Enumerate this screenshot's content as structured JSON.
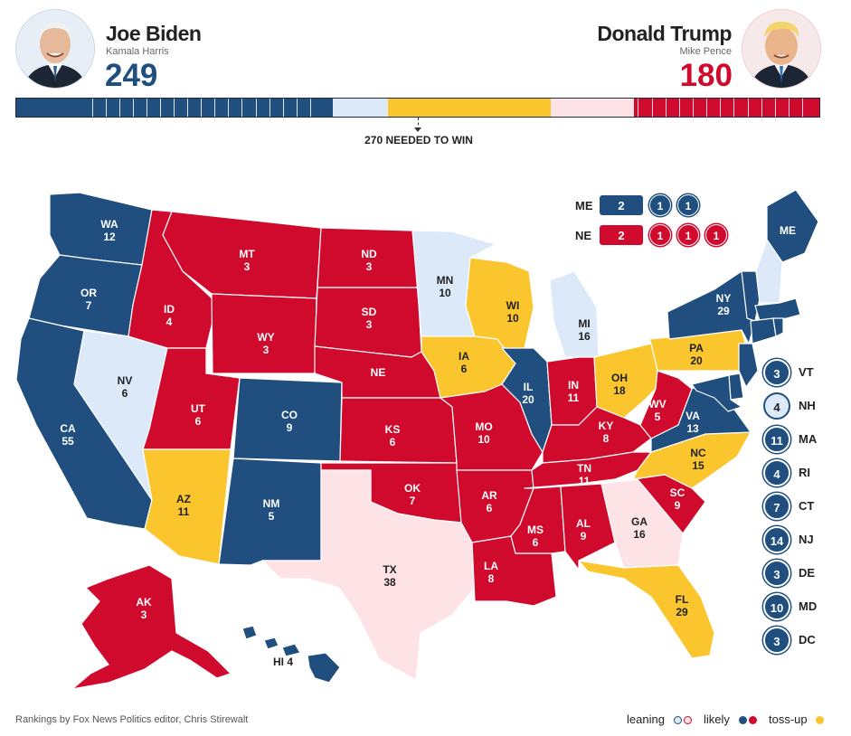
{
  "colors": {
    "likely_dem": "#1f4e7f",
    "lean_dem": "#dbe9f8",
    "tossup": "#fbc52e",
    "lean_rep": "#fde2e6",
    "likely_rep": "#cf0a2c",
    "dem_text": "#1f4e7f",
    "rep_text": "#cf0a2c"
  },
  "header": {
    "dem": {
      "name": "Joe Biden",
      "running_mate": "Kamala Harris",
      "votes": "249",
      "avatar_icon": "joe-biden-portrait"
    },
    "rep": {
      "name": "Donald Trump",
      "running_mate": "Mike Pence",
      "votes": "180",
      "avatar_icon": "donald-trump-portrait"
    }
  },
  "bar": {
    "needed_label": "270 NEEDED TO WIN",
    "needed_votes": 270,
    "total_votes": 538,
    "segments": [
      {
        "category": "likely_dem",
        "votes": 212
      },
      {
        "category": "lean_dem",
        "votes": 37
      },
      {
        "category": "tossup",
        "votes": 109
      },
      {
        "category": "lean_rep",
        "votes": 56
      },
      {
        "category": "likely_rep",
        "votes": 124
      }
    ]
  },
  "states": [
    {
      "abbr": "WA",
      "ev": "12",
      "cat": "likely_dem"
    },
    {
      "abbr": "OR",
      "ev": "7",
      "cat": "likely_dem"
    },
    {
      "abbr": "CA",
      "ev": "55",
      "cat": "likely_dem"
    },
    {
      "abbr": "NV",
      "ev": "6",
      "cat": "lean_dem"
    },
    {
      "abbr": "ID",
      "ev": "4",
      "cat": "likely_rep"
    },
    {
      "abbr": "MT",
      "ev": "3",
      "cat": "likely_rep"
    },
    {
      "abbr": "WY",
      "ev": "3",
      "cat": "likely_rep"
    },
    {
      "abbr": "UT",
      "ev": "6",
      "cat": "likely_rep"
    },
    {
      "abbr": "AZ",
      "ev": "11",
      "cat": "tossup"
    },
    {
      "abbr": "CO",
      "ev": "9",
      "cat": "likely_dem"
    },
    {
      "abbr": "NM",
      "ev": "5",
      "cat": "likely_dem"
    },
    {
      "abbr": "ND",
      "ev": "3",
      "cat": "likely_rep"
    },
    {
      "abbr": "SD",
      "ev": "3",
      "cat": "likely_rep"
    },
    {
      "abbr": "NE",
      "ev": "",
      "cat": "likely_rep"
    },
    {
      "abbr": "KS",
      "ev": "6",
      "cat": "likely_rep"
    },
    {
      "abbr": "OK",
      "ev": "7",
      "cat": "likely_rep"
    },
    {
      "abbr": "TX",
      "ev": "38",
      "cat": "lean_rep"
    },
    {
      "abbr": "MN",
      "ev": "10",
      "cat": "lean_dem"
    },
    {
      "abbr": "IA",
      "ev": "6",
      "cat": "tossup"
    },
    {
      "abbr": "MO",
      "ev": "10",
      "cat": "likely_rep"
    },
    {
      "abbr": "AR",
      "ev": "6",
      "cat": "likely_rep"
    },
    {
      "abbr": "LA",
      "ev": "8",
      "cat": "likely_rep"
    },
    {
      "abbr": "WI",
      "ev": "10",
      "cat": "tossup"
    },
    {
      "abbr": "IL",
      "ev": "20",
      "cat": "likely_dem"
    },
    {
      "abbr": "MI",
      "ev": "16",
      "cat": "lean_dem"
    },
    {
      "abbr": "IN",
      "ev": "11",
      "cat": "likely_rep"
    },
    {
      "abbr": "OH",
      "ev": "18",
      "cat": "tossup"
    },
    {
      "abbr": "KY",
      "ev": "8",
      "cat": "likely_rep"
    },
    {
      "abbr": "TN",
      "ev": "11",
      "cat": "likely_rep"
    },
    {
      "abbr": "MS",
      "ev": "6",
      "cat": "likely_rep"
    },
    {
      "abbr": "AL",
      "ev": "9",
      "cat": "likely_rep"
    },
    {
      "abbr": "GA",
      "ev": "16",
      "cat": "lean_rep"
    },
    {
      "abbr": "FL",
      "ev": "29",
      "cat": "tossup"
    },
    {
      "abbr": "SC",
      "ev": "9",
      "cat": "likely_rep"
    },
    {
      "abbr": "NC",
      "ev": "15",
      "cat": "tossup"
    },
    {
      "abbr": "VA",
      "ev": "13",
      "cat": "likely_dem"
    },
    {
      "abbr": "WV",
      "ev": "5",
      "cat": "likely_rep"
    },
    {
      "abbr": "PA",
      "ev": "20",
      "cat": "tossup"
    },
    {
      "abbr": "NY",
      "ev": "29",
      "cat": "likely_dem"
    },
    {
      "abbr": "ME",
      "ev": "",
      "cat": "likely_dem"
    },
    {
      "abbr": "AK",
      "ev": "3",
      "cat": "likely_rep"
    },
    {
      "abbr": "HI",
      "ev": "4",
      "cat": "likely_dem"
    }
  ],
  "split_states": [
    {
      "abbr": "ME",
      "box": "2",
      "districts": [
        "1",
        "1"
      ],
      "cat": "likely_dem"
    },
    {
      "abbr": "NE",
      "box": "2",
      "districts": [
        "1",
        "1",
        "1"
      ],
      "cat": "likely_rep"
    }
  ],
  "small_states": [
    {
      "abbr": "VT",
      "ev": "3",
      "cat": "likely_dem"
    },
    {
      "abbr": "NH",
      "ev": "4",
      "cat": "lean_dem"
    },
    {
      "abbr": "MA",
      "ev": "11",
      "cat": "likely_dem"
    },
    {
      "abbr": "RI",
      "ev": "4",
      "cat": "likely_dem"
    },
    {
      "abbr": "CT",
      "ev": "7",
      "cat": "likely_dem"
    },
    {
      "abbr": "NJ",
      "ev": "14",
      "cat": "likely_dem"
    },
    {
      "abbr": "DE",
      "ev": "3",
      "cat": "likely_dem"
    },
    {
      "abbr": "MD",
      "ev": "10",
      "cat": "likely_dem"
    },
    {
      "abbr": "DC",
      "ev": "3",
      "cat": "likely_dem"
    }
  ],
  "footer": {
    "source": "Rankings by Fox News Politics editor, Chris Stirewalt",
    "legend": [
      {
        "label": "leaning",
        "dots": [
          "lean_dem",
          "lean_rep"
        ]
      },
      {
        "label": "likely",
        "dots": [
          "likely_dem",
          "likely_rep"
        ]
      },
      {
        "label": "toss-up",
        "dots": [
          "tossup"
        ]
      }
    ]
  }
}
